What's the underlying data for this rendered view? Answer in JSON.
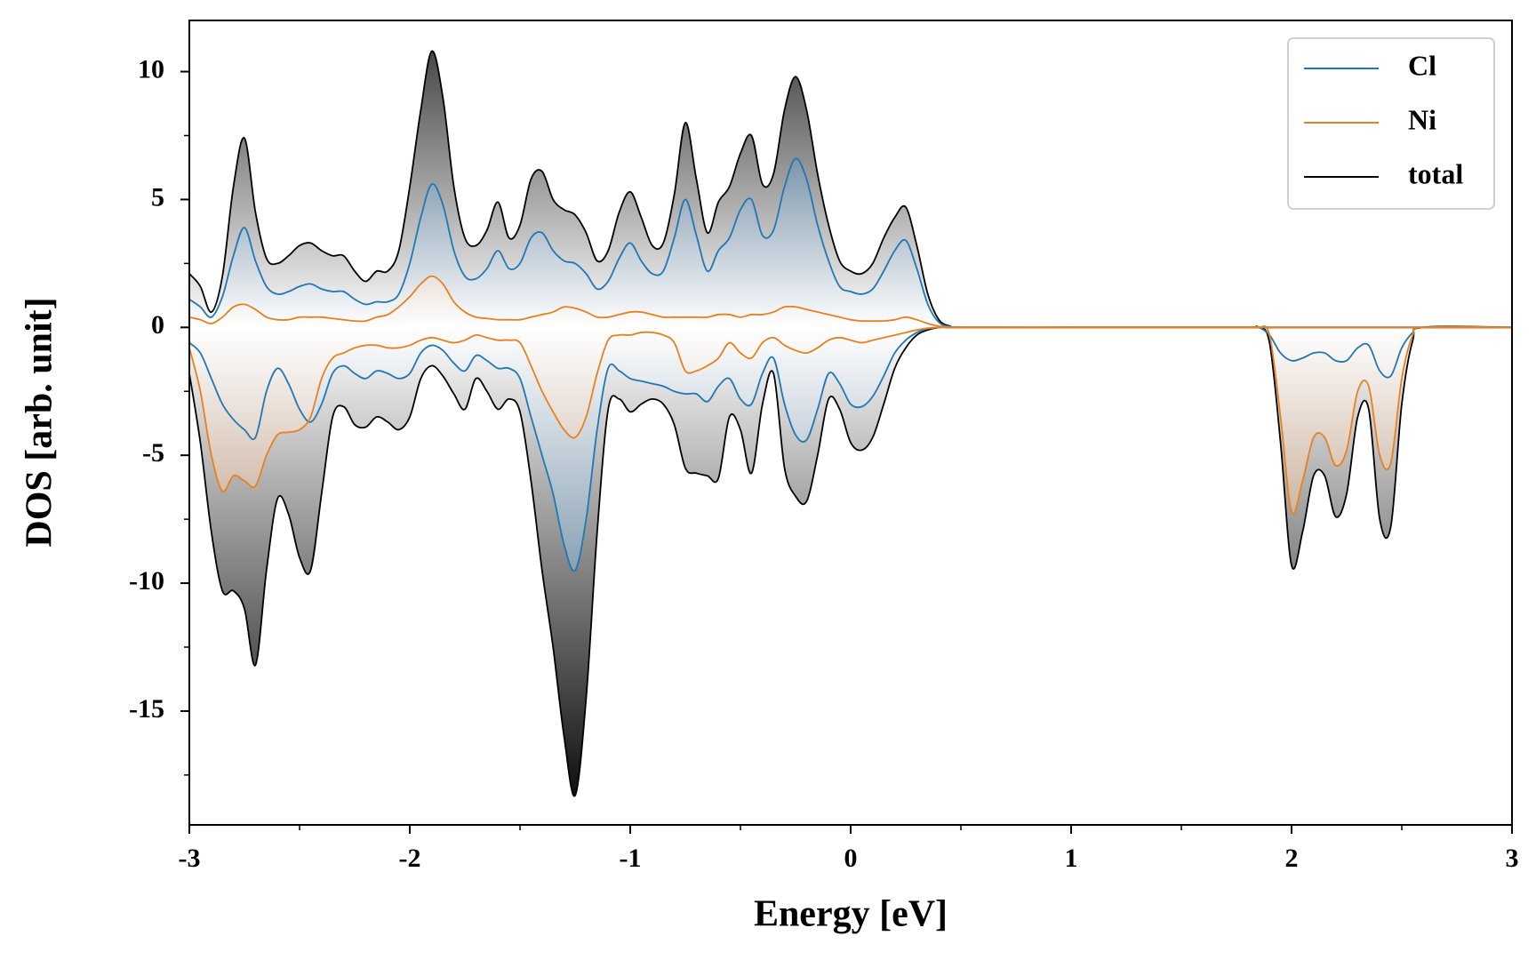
{
  "chart_data": {
    "type": "dos",
    "xlabel": "Energy [eV]",
    "ylabel": "DOS [arb. unit]",
    "xlim": [
      -3,
      3
    ],
    "ylim": [
      -19.45,
      12.0
    ],
    "xticks": [
      -3,
      -2,
      -1,
      0,
      1,
      2,
      3
    ],
    "xminorticks": [
      -2.5,
      -1.5,
      -0.5,
      0.5,
      1.5,
      2.5
    ],
    "yticks": [
      -15,
      -10,
      -5,
      0,
      5,
      10
    ],
    "yminorticks": [
      -17.5,
      -12.5,
      -7.5,
      -2.5,
      2.5,
      7.5
    ],
    "legend": "upper right",
    "x": [
      -3,
      -2.95,
      -2.9,
      -2.85,
      -2.8,
      -2.75,
      -2.7,
      -2.65,
      -2.6,
      -2.55,
      -2.5,
      -2.45,
      -2.4,
      -2.35,
      -2.3,
      -2.25,
      -2.2,
      -2.15,
      -2.1,
      -2.05,
      -2,
      -1.95,
      -1.9,
      -1.85,
      -1.8,
      -1.75,
      -1.7,
      -1.65,
      -1.6,
      -1.55,
      -1.5,
      -1.45,
      -1.4,
      -1.35,
      -1.3,
      -1.25,
      -1.2,
      -1.15,
      -1.1,
      -1.05,
      -1,
      -0.95,
      -0.9,
      -0.85,
      -0.8,
      -0.75,
      -0.7,
      -0.65,
      -0.6,
      -0.55,
      -0.5,
      -0.45,
      -0.4,
      -0.35,
      -0.3,
      -0.25,
      -0.2,
      -0.15,
      -0.1,
      -0.05,
      0,
      0.05,
      0.1,
      0.15,
      0.2,
      0.25,
      0.3,
      0.35,
      0.4,
      0.45,
      0.5,
      1,
      1.5,
      1.8,
      1.85,
      1.9,
      1.95,
      2,
      2.05,
      2.1,
      2.15,
      2.2,
      2.25,
      2.3,
      2.35,
      2.4,
      2.45,
      2.5,
      2.55,
      2.6,
      3
    ],
    "series": [
      {
        "name": "Cl",
        "color": "#1f77b4",
        "fill": "#103f66",
        "values": [
          1.1,
          0.8,
          0.4,
          1.2,
          2.8,
          3.9,
          2.6,
          1.6,
          1.3,
          1.4,
          1.6,
          1.7,
          1.5,
          1.4,
          1.4,
          1.1,
          0.9,
          1.0,
          1.0,
          1.3,
          2.5,
          4.3,
          5.6,
          4.8,
          3.0,
          2.0,
          1.9,
          2.3,
          3.0,
          2.3,
          2.5,
          3.5,
          3.7,
          3.0,
          2.6,
          2.5,
          2.1,
          1.5,
          1.8,
          2.7,
          3.3,
          2.6,
          2.1,
          2.2,
          3.5,
          5.0,
          3.6,
          2.2,
          3.0,
          3.5,
          4.6,
          5.0,
          3.6,
          3.8,
          5.5,
          6.6,
          5.8,
          4.0,
          2.6,
          1.6,
          1.4,
          1.3,
          1.5,
          2.2,
          3.0,
          3.4,
          2.3,
          0.9,
          0.2,
          0.03,
          0,
          0,
          0,
          0,
          0,
          0,
          0,
          0,
          0,
          0,
          0,
          0,
          0,
          0,
          0,
          0,
          0,
          0,
          0,
          0,
          0
        ],
        "values_down": [
          -0.6,
          -1.0,
          -2.0,
          -3.0,
          -3.6,
          -4.0,
          -4.3,
          -2.5,
          -1.6,
          -2.2,
          -3.2,
          -3.7,
          -3.0,
          -1.8,
          -1.5,
          -1.8,
          -2.0,
          -1.7,
          -1.8,
          -2.0,
          -1.8,
          -1.0,
          -0.7,
          -0.9,
          -1.4,
          -1.7,
          -1.1,
          -1.3,
          -1.6,
          -1.6,
          -2.0,
          -3.5,
          -5.0,
          -6.5,
          -8.5,
          -9.5,
          -7.5,
          -4.0,
          -1.6,
          -1.7,
          -2.0,
          -2.1,
          -2.2,
          -2.3,
          -2.5,
          -2.6,
          -2.6,
          -2.9,
          -2.3,
          -2.0,
          -2.8,
          -3.0,
          -1.8,
          -1.2,
          -3.0,
          -4.2,
          -4.4,
          -3.2,
          -1.8,
          -2.2,
          -3.0,
          -3.1,
          -2.7,
          -1.9,
          -1.0,
          -0.5,
          -0.2,
          -0.05,
          0,
          0,
          0,
          0,
          0,
          0,
          0,
          -0.3,
          -1.0,
          -1.3,
          -1.2,
          -1.0,
          -1.0,
          -1.3,
          -1.3,
          -0.8,
          -0.7,
          -1.7,
          -1.9,
          -0.8,
          -0.2,
          0,
          0
        ]
      },
      {
        "name": "Ni",
        "color": "#e8801f",
        "fill": "#a04e0a",
        "values": [
          0.4,
          0.3,
          0.15,
          0.4,
          0.8,
          0.9,
          0.7,
          0.4,
          0.3,
          0.3,
          0.4,
          0.4,
          0.4,
          0.35,
          0.3,
          0.25,
          0.25,
          0.4,
          0.5,
          0.8,
          1.2,
          1.7,
          2.0,
          1.7,
          1.0,
          0.6,
          0.4,
          0.35,
          0.3,
          0.3,
          0.3,
          0.4,
          0.5,
          0.6,
          0.8,
          0.75,
          0.6,
          0.4,
          0.4,
          0.5,
          0.6,
          0.6,
          0.5,
          0.4,
          0.4,
          0.4,
          0.4,
          0.4,
          0.5,
          0.5,
          0.4,
          0.5,
          0.5,
          0.6,
          0.8,
          0.8,
          0.7,
          0.6,
          0.5,
          0.4,
          0.3,
          0.25,
          0.25,
          0.25,
          0.3,
          0.4,
          0.3,
          0.15,
          0.05,
          0.01,
          0,
          0,
          0,
          0,
          0,
          0,
          0,
          0,
          0,
          0,
          0,
          0,
          0,
          0,
          0,
          0,
          0,
          0,
          0,
          0,
          0
        ],
        "values_down": [
          -0.8,
          -2.5,
          -5.0,
          -6.4,
          -5.8,
          -6.0,
          -6.2,
          -5.0,
          -4.2,
          -4.1,
          -4.0,
          -3.5,
          -2.0,
          -1.2,
          -1.0,
          -0.8,
          -0.7,
          -0.7,
          -0.8,
          -0.8,
          -0.7,
          -0.5,
          -0.4,
          -0.5,
          -0.6,
          -0.5,
          -0.3,
          -0.4,
          -0.5,
          -0.5,
          -0.6,
          -1.5,
          -2.5,
          -3.3,
          -4.0,
          -4.3,
          -3.5,
          -1.8,
          -0.5,
          -0.3,
          -0.3,
          -0.2,
          -0.2,
          -0.3,
          -0.6,
          -1.7,
          -1.7,
          -1.5,
          -1.2,
          -0.6,
          -1.0,
          -1.2,
          -0.6,
          -0.4,
          -0.7,
          -0.9,
          -1.0,
          -0.8,
          -0.5,
          -0.4,
          -0.5,
          -0.6,
          -0.5,
          -0.4,
          -0.3,
          -0.2,
          -0.1,
          -0.03,
          0,
          0,
          0,
          0,
          0,
          0,
          0,
          -0.3,
          -3.5,
          -7.2,
          -6.0,
          -4.3,
          -4.3,
          -5.4,
          -4.8,
          -2.5,
          -2.3,
          -5.0,
          -5.3,
          -2.0,
          -0.3,
          0,
          0
        ]
      },
      {
        "name": "total",
        "color": "#000000",
        "fill": "#000000",
        "values": [
          2.1,
          1.6,
          0.6,
          2.0,
          5.5,
          7.4,
          4.5,
          2.7,
          2.5,
          2.8,
          3.2,
          3.3,
          3.0,
          2.8,
          2.8,
          2.2,
          1.8,
          2.2,
          2.2,
          3.0,
          5.5,
          8.5,
          10.8,
          9.0,
          5.5,
          3.5,
          3.2,
          3.8,
          4.9,
          3.5,
          4.0,
          5.8,
          6.1,
          5.0,
          4.6,
          4.4,
          3.7,
          2.6,
          3.0,
          4.5,
          5.3,
          4.3,
          3.2,
          3.3,
          5.2,
          8.0,
          5.8,
          3.7,
          4.9,
          5.5,
          6.8,
          7.5,
          5.6,
          6.0,
          8.5,
          9.8,
          8.5,
          6.0,
          4.0,
          2.6,
          2.2,
          2.1,
          2.5,
          3.5,
          4.3,
          4.7,
          3.2,
          1.3,
          0.3,
          0.05,
          0,
          0,
          0,
          0,
          0,
          0,
          0,
          0,
          0,
          0,
          0,
          0,
          0,
          0,
          0,
          0,
          0,
          0,
          0,
          0,
          0
        ],
        "values_down": [
          -1.8,
          -4.5,
          -8.0,
          -10.3,
          -10.3,
          -11.0,
          -13.2,
          -9.5,
          -6.7,
          -7.3,
          -9.0,
          -9.5,
          -6.5,
          -3.5,
          -3.1,
          -3.8,
          -3.9,
          -3.5,
          -3.7,
          -4.0,
          -3.5,
          -2.0,
          -1.5,
          -1.9,
          -2.6,
          -3.2,
          -2.0,
          -2.5,
          -3.2,
          -2.8,
          -3.3,
          -6.0,
          -9.5,
          -12.5,
          -16.0,
          -18.3,
          -14.5,
          -8.0,
          -3.2,
          -2.8,
          -3.3,
          -3.0,
          -2.8,
          -3.0,
          -3.8,
          -5.5,
          -5.7,
          -5.8,
          -5.9,
          -3.5,
          -4.0,
          -5.7,
          -3.0,
          -1.8,
          -5.5,
          -6.6,
          -6.8,
          -5.0,
          -2.8,
          -3.2,
          -4.5,
          -4.8,
          -4.3,
          -3.0,
          -1.6,
          -0.8,
          -0.3,
          -0.1,
          0,
          0,
          0,
          0,
          0,
          0,
          0,
          -0.6,
          -4.5,
          -9.3,
          -8.0,
          -5.8,
          -5.8,
          -7.4,
          -6.5,
          -3.5,
          -3.2,
          -7.5,
          -7.8,
          -3.0,
          -0.5,
          0,
          0
        ]
      }
    ]
  }
}
